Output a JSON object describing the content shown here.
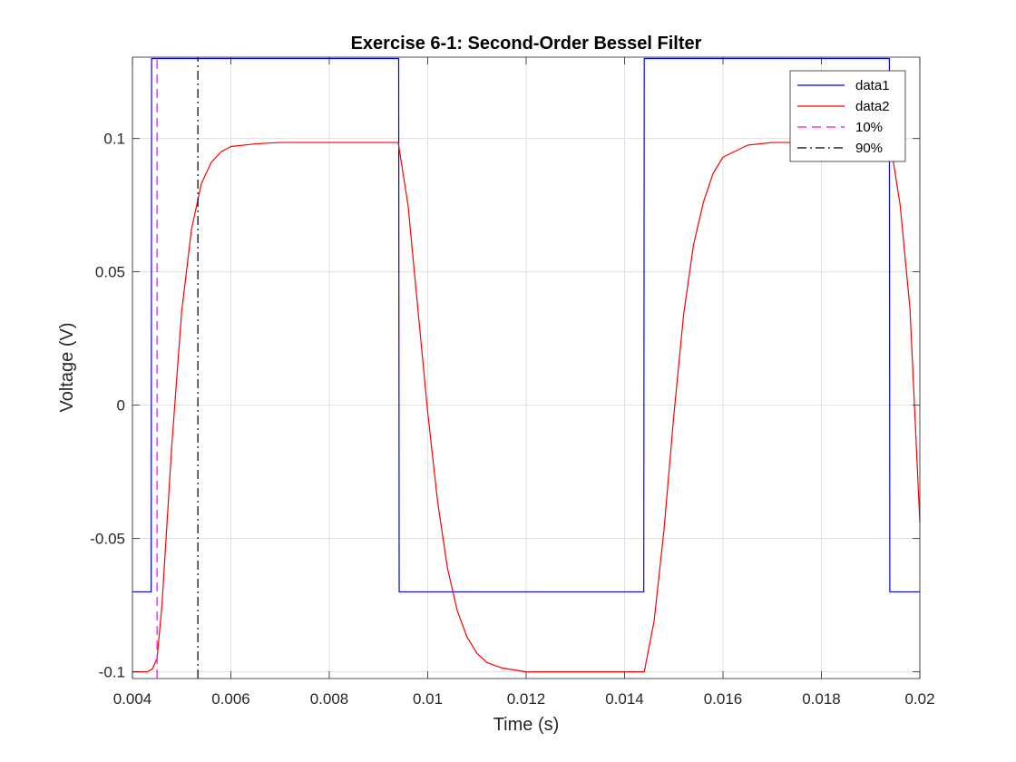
{
  "chart_data": {
    "type": "line",
    "title": "Exercise 6-1: Second-Order Bessel Filter",
    "xlabel": "Time (s)",
    "ylabel": "Voltage (V)",
    "xlim": [
      0.004,
      0.02
    ],
    "ylim": [
      -0.1025,
      0.1305
    ],
    "xticks": [
      0.004,
      0.006,
      0.008,
      0.01,
      0.012,
      0.014,
      0.016,
      0.018,
      0.02
    ],
    "xtick_labels": [
      "0.004",
      "0.006",
      "0.008",
      "0.01",
      "0.012",
      "0.014",
      "0.016",
      "0.018",
      "0.02"
    ],
    "yticks": [
      -0.1,
      -0.05,
      0,
      0.05,
      0.1
    ],
    "ytick_labels": [
      "-0.1",
      "-0.05",
      "0",
      "0.05",
      "0.1"
    ],
    "grid": true,
    "legend_position": "top-right",
    "series": [
      {
        "name": "data1",
        "color": "#0000ff",
        "style": "solid",
        "x": [
          0.004,
          0.00438,
          0.00439,
          0.00941,
          0.00942,
          0.01439,
          0.0144,
          0.01938,
          0.01939,
          0.02
        ],
        "y": [
          -0.07,
          -0.07,
          0.13,
          0.13,
          -0.07,
          -0.07,
          0.13,
          0.13,
          -0.07,
          -0.07
        ]
      },
      {
        "name": "data2",
        "color": "#ff0000",
        "style": "solid",
        "x": [
          0.004,
          0.0043,
          0.0044,
          0.0045,
          0.0046,
          0.0047,
          0.0048,
          0.005,
          0.0052,
          0.0054,
          0.0056,
          0.0058,
          0.006,
          0.0065,
          0.007,
          0.008,
          0.0094,
          0.0096,
          0.0098,
          0.01,
          0.0102,
          0.0104,
          0.0106,
          0.0108,
          0.011,
          0.0112,
          0.0115,
          0.012,
          0.0144,
          0.0146,
          0.0148,
          0.015,
          0.0152,
          0.0154,
          0.0156,
          0.0158,
          0.016,
          0.0165,
          0.017,
          0.0194,
          0.0196,
          0.0198,
          0.02
        ],
        "y": [
          -0.1,
          -0.1,
          -0.099,
          -0.095,
          -0.075,
          -0.045,
          -0.015,
          0.035,
          0.066,
          0.083,
          0.091,
          0.095,
          0.097,
          0.098,
          0.0985,
          0.0985,
          0.0985,
          0.075,
          0.036,
          -0.0027,
          -0.036,
          -0.061,
          -0.077,
          -0.087,
          -0.093,
          -0.0965,
          -0.0985,
          -0.1,
          -0.1,
          -0.081,
          -0.047,
          -0.004,
          0.034,
          0.06,
          0.076,
          0.087,
          0.093,
          0.0975,
          0.0985,
          0.0985,
          0.075,
          0.036,
          -0.044
        ]
      },
      {
        "name": "10%",
        "color": "#ff00ff",
        "style": "dashed",
        "x": [
          0.0045,
          0.0045
        ],
        "y": [
          -0.1025,
          0.1305
        ]
      },
      {
        "name": "90%",
        "color": "#000000",
        "style": "dashdot",
        "x": [
          0.00533,
          0.00533
        ],
        "y": [
          -0.1025,
          0.1305
        ]
      }
    ]
  }
}
